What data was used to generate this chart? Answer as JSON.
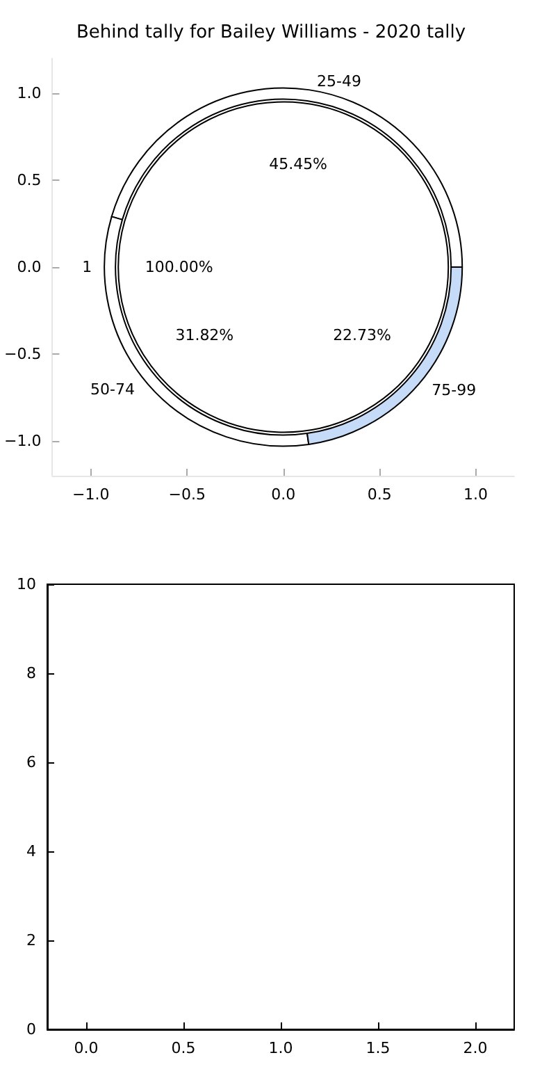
{
  "chart_data": [
    {
      "type": "scatter",
      "title": "Behind tally for Bailey Williams - 2020 tally",
      "xlim": [
        -1.2,
        1.2
      ],
      "ylim": [
        -1.2,
        1.2
      ],
      "xticks": [
        {
          "value": -1,
          "label": "−1.0"
        },
        {
          "value": -0.5,
          "label": "−0.5"
        },
        {
          "value": 0,
          "label": "0.0"
        },
        {
          "value": 0.5,
          "label": "0.5"
        },
        {
          "value": 1,
          "label": "1.0"
        }
      ],
      "yticks": [
        {
          "value": -1,
          "label": "−1.0"
        },
        {
          "value": -0.5,
          "label": "−0.5"
        },
        {
          "value": 0,
          "label": "0.0"
        },
        {
          "value": 0.5,
          "label": "0.5"
        },
        {
          "value": 1,
          "label": "1.0"
        }
      ]
    },
    {
      "type": "donut",
      "categories": [
        "25-49",
        "50-74",
        "75-99"
      ],
      "values": [
        45.45,
        31.82,
        22.73
      ],
      "colors": [
        "#ffffff",
        "#ffffff",
        "#c6dbf7"
      ],
      "value_labels": [
        "45.45%",
        "31.82%",
        "22.73%"
      ]
    },
    {
      "type": "pie",
      "categories": [
        "1"
      ],
      "values": [
        100
      ],
      "colors": [
        "#ffffff"
      ],
      "value_labels": [
        "100.00%"
      ]
    },
    {
      "type": "scatter",
      "xlim": [
        -0.2,
        2.2
      ],
      "ylim": [
        0,
        10
      ],
      "xticks": [
        {
          "value": 0,
          "label": "0.0"
        },
        {
          "value": 0.5,
          "label": "0.5"
        },
        {
          "value": 1,
          "label": "1.0"
        },
        {
          "value": 1.5,
          "label": "1.5"
        },
        {
          "value": 2,
          "label": "2.0"
        }
      ],
      "yticks": [
        0,
        2,
        4,
        6,
        8,
        10
      ]
    }
  ]
}
